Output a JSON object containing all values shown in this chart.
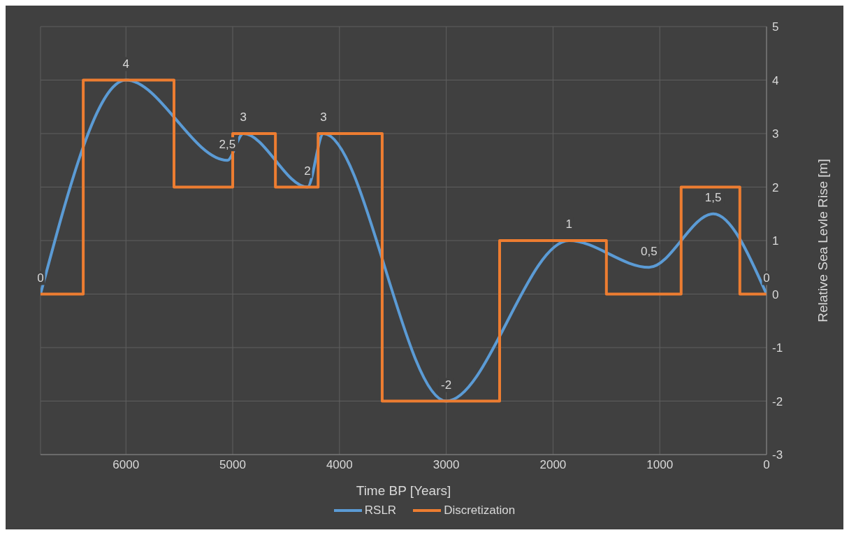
{
  "chart_data": {
    "type": "line",
    "xlabel": "Time BP [Years]",
    "ylabel": "Relative Sea Levle Rise [m]",
    "xlim": [
      6800,
      0
    ],
    "xticks": [
      6000,
      5000,
      4000,
      3000,
      2000,
      1000,
      0
    ],
    "ylim": [
      -3,
      5
    ],
    "yticks": [
      -3,
      -2,
      -1,
      0,
      1,
      2,
      3,
      4,
      5
    ],
    "grid": true,
    "legend": "bottom",
    "marker": "none",
    "series": [
      {
        "name": "RSLR",
        "color": "#5b9bd5",
        "x": [
          6800,
          6000,
          5050,
          4900,
          4300,
          4150,
          3000,
          1850,
          1100,
          500,
          0
        ],
        "values": [
          0,
          4,
          2.5,
          3,
          2,
          3,
          -2,
          1,
          0.5,
          1.5,
          0
        ],
        "value_labels": [
          "0",
          "4",
          "2,5",
          "3",
          "2",
          "3",
          "-2",
          "1",
          "0,5",
          "1,5",
          "0"
        ]
      },
      {
        "name": "Discretization",
        "type": "step",
        "color": "#ed7d31",
        "x": [
          6800,
          6400,
          5550,
          5000,
          4600,
          4200,
          3600,
          2500,
          1500,
          800,
          250,
          0
        ],
        "values": [
          0,
          4,
          2,
          3,
          2,
          3,
          -2,
          1,
          0,
          2,
          0,
          0
        ]
      }
    ]
  }
}
